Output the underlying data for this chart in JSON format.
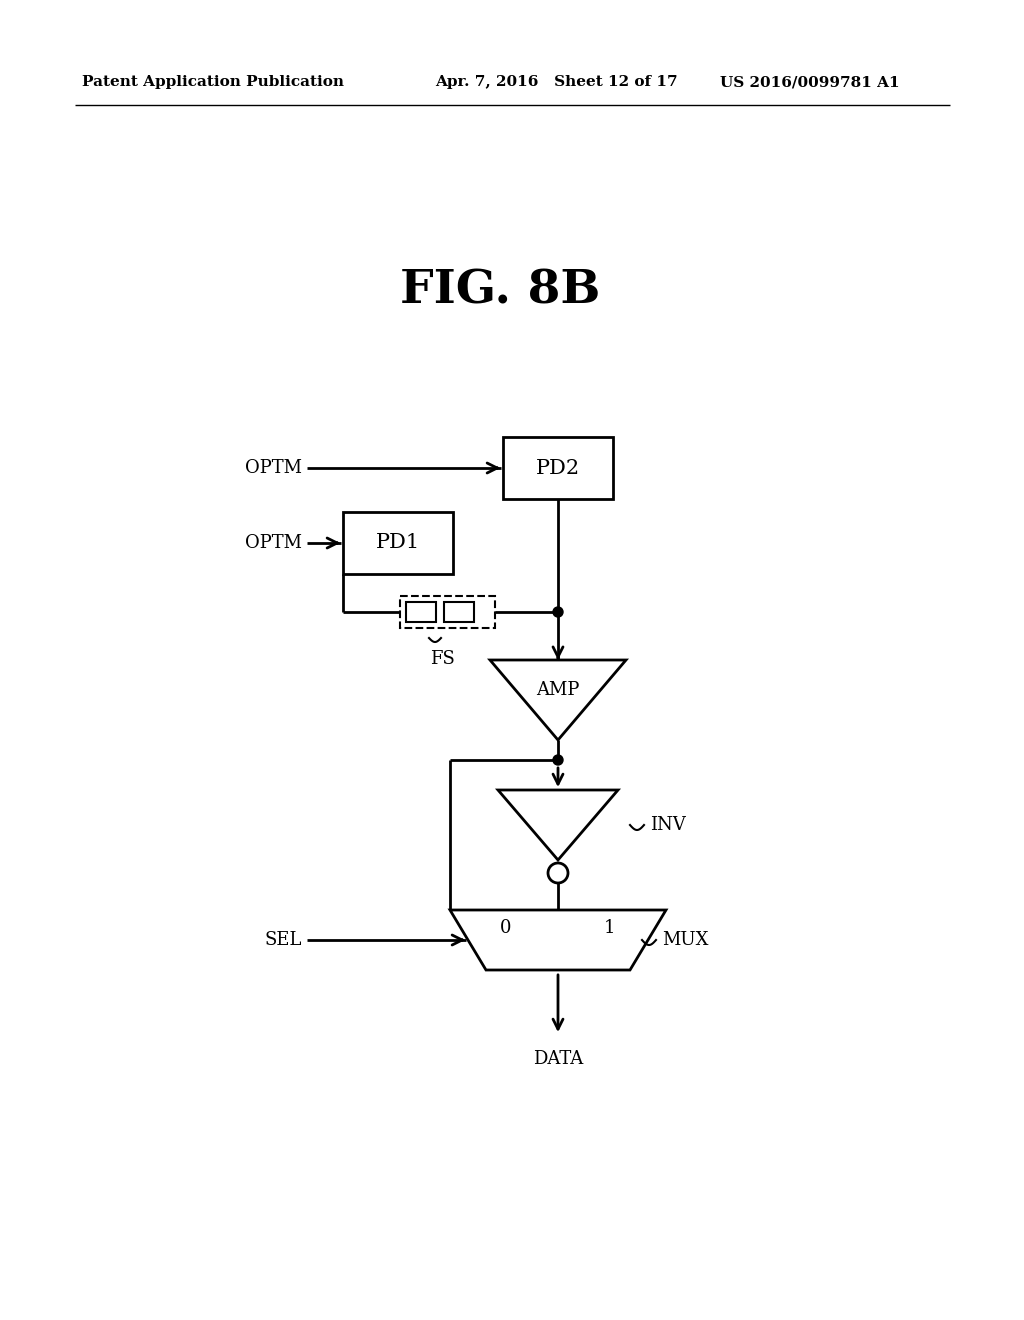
{
  "title": "FIG. 8B",
  "header_left": "Patent Application Publication",
  "header_mid": "Apr. 7, 2016   Sheet 12 of 17",
  "header_right": "US 2016/0099781 A1",
  "bg_color": "#ffffff",
  "line_color": "#000000",
  "font_color": "#000000",
  "pd2_label": "PD2",
  "pd1_label": "PD1",
  "amp_label": "AMP",
  "inv_label": "INV",
  "mux_label": "MUX",
  "sel_label": "SEL",
  "data_label": "DATA",
  "optm_label": "OPTM",
  "fs_label": "FS"
}
